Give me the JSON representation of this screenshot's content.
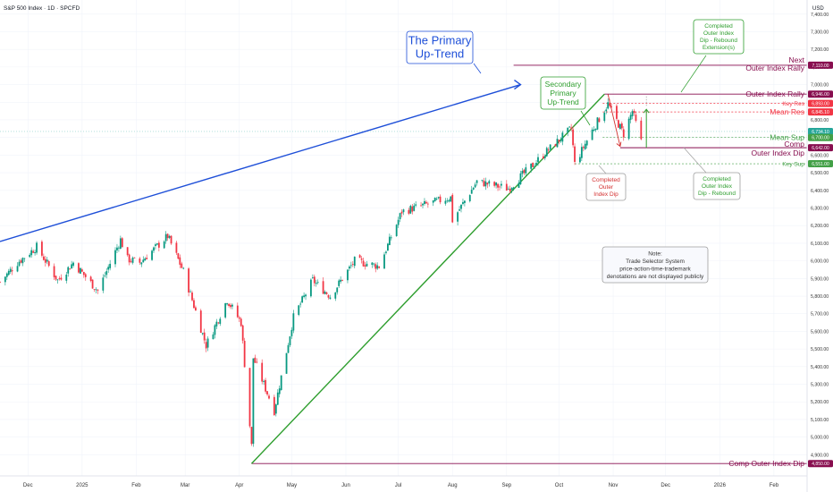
{
  "header": {
    "title": "S&P 500 Index · 1D · SPCFD",
    "currency": "USD"
  },
  "chart_data": {
    "type": "candlestick",
    "title": "S&P 500 Index · 1D · SPCFD",
    "y_axis_label": "USD",
    "ylim": [
      4780,
      7480
    ],
    "x_range": [
      "2024-11-15",
      "2026-02-20"
    ],
    "x_ticks": [
      {
        "label": "Dec",
        "date": "2024-12-01"
      },
      {
        "label": "2025",
        "date": "2025-01-01"
      },
      {
        "label": "Feb",
        "date": "2025-02-01"
      },
      {
        "label": "Mar",
        "date": "2025-03-01"
      },
      {
        "label": "Apr",
        "date": "2025-04-01"
      },
      {
        "label": "May",
        "date": "2025-05-01"
      },
      {
        "label": "Jun",
        "date": "2025-06-01"
      },
      {
        "label": "Jul",
        "date": "2025-07-01"
      },
      {
        "label": "Aug",
        "date": "2025-08-01"
      },
      {
        "label": "Sep",
        "date": "2025-09-01"
      },
      {
        "label": "Oct",
        "date": "2025-10-01"
      },
      {
        "label": "Nov",
        "date": "2025-11-01"
      },
      {
        "label": "Dec",
        "date": "2025-12-01"
      },
      {
        "label": "2026",
        "date": "2026-01-01"
      },
      {
        "label": "Feb",
        "date": "2026-02-01"
      }
    ],
    "y_ticks": [
      "4,900.00",
      "5,000.00",
      "5,100.00",
      "5,200.00",
      "5,300.00",
      "5,400.00",
      "5,500.00",
      "5,600.00",
      "5,700.00",
      "5,800.00",
      "5,900.00",
      "6,000.00",
      "6,100.00",
      "6,200.00",
      "6,300.00",
      "6,400.00",
      "6,500.00",
      "6,600.00",
      "6,700.00",
      "6,800.00",
      "6,900.00",
      "7,000.00",
      "7,100.00",
      "7,200.00",
      "7,300.00",
      "7,400.00"
    ],
    "price_anchors": [
      {
        "date": "2024-11-15",
        "price": 5880
      },
      {
        "date": "2024-11-25",
        "price": 5990
      },
      {
        "date": "2024-12-06",
        "price": 6080
      },
      {
        "date": "2024-12-18",
        "price": 5890
      },
      {
        "date": "2024-12-27",
        "price": 5990
      },
      {
        "date": "2025-01-10",
        "price": 5830
      },
      {
        "date": "2025-01-23",
        "price": 6120
      },
      {
        "date": "2025-01-27",
        "price": 6010
      },
      {
        "date": "2025-02-03",
        "price": 5990
      },
      {
        "date": "2025-02-19",
        "price": 6140
      },
      {
        "date": "2025-02-28",
        "price": 5940
      },
      {
        "date": "2025-03-13",
        "price": 5520
      },
      {
        "date": "2025-03-25",
        "price": 5780
      },
      {
        "date": "2025-04-02",
        "price": 5650
      },
      {
        "date": "2025-04-08",
        "price": 4950
      },
      {
        "date": "2025-04-09",
        "price": 5450
      },
      {
        "date": "2025-04-21",
        "price": 5150
      },
      {
        "date": "2025-05-02",
        "price": 5680
      },
      {
        "date": "2025-05-13",
        "price": 5890
      },
      {
        "date": "2025-05-23",
        "price": 5800
      },
      {
        "date": "2025-06-06",
        "price": 6000
      },
      {
        "date": "2025-06-20",
        "price": 5970
      },
      {
        "date": "2025-07-03",
        "price": 6280
      },
      {
        "date": "2025-07-31",
        "price": 6360
      },
      {
        "date": "2025-08-01",
        "price": 6230
      },
      {
        "date": "2025-08-15",
        "price": 6450
      },
      {
        "date": "2025-09-02",
        "price": 6410
      },
      {
        "date": "2025-09-26",
        "price": 6640
      },
      {
        "date": "2025-10-08",
        "price": 6750
      },
      {
        "date": "2025-10-10",
        "price": 6550
      },
      {
        "date": "2025-10-20",
        "price": 6740
      },
      {
        "date": "2025-10-29",
        "price": 6890
      },
      {
        "date": "2025-11-07",
        "price": 6720
      },
      {
        "date": "2025-11-12",
        "price": 6850
      },
      {
        "date": "2025-11-18",
        "price": 6640
      }
    ],
    "current_price": "6,734.10",
    "price_levels": [
      {
        "name": "Next Outer Index Rally",
        "label_line1": "Next",
        "label_line2": "Outer Index Rally",
        "value": 7110,
        "tag": "7,110.00",
        "color": "#880e4f"
      },
      {
        "name": "Outer Index Rally",
        "label": "Outer Index Rally",
        "value": 6946,
        "tag": "6,946.00",
        "color": "#880e4f"
      },
      {
        "name": "Key Res",
        "label": "Key Res",
        "value": 6893,
        "tag": "6,893.00",
        "color": "#f23645"
      },
      {
        "name": "Mean Res",
        "label": "Mean Res",
        "value": 6845.1,
        "tag": "6,845.10",
        "color": "#f23645"
      },
      {
        "name": "Mean Sup",
        "label": "Mean Sup",
        "value": 6700,
        "tag": "6,700.00",
        "color": "#43a047"
      },
      {
        "name": "Comp",
        "label": "Comp",
        "value": 6642,
        "tag": "6,642.00",
        "color": "#880e4f"
      },
      {
        "name": "Outer Index Dip",
        "label": "Outer Index Dip",
        "value": 6642,
        "color": "#880e4f"
      },
      {
        "name": "Key Sup",
        "label": "Key Sup",
        "value": 6551,
        "tag": "6,551.00",
        "color": "#43a047"
      },
      {
        "name": "Comp Outer Index Dip",
        "label": "Comp Outer Index Dip",
        "value": 4850,
        "tag": "4,850.00",
        "color": "#880e4f"
      }
    ],
    "trendlines": [
      {
        "name": "primary-uptrend",
        "color": "#1e4fd8",
        "from": {
          "date": "2024-11-15",
          "price": 6110
        },
        "to": {
          "date": "2025-09-09",
          "price": 7000
        }
      },
      {
        "name": "secondary-uptrend",
        "color": "#2e9e2e",
        "from": {
          "date": "2025-04-08",
          "price": 4850
        },
        "to": {
          "date": "2025-10-27",
          "price": 6946
        }
      }
    ],
    "annotations": {
      "primary_trend": "The Primary Up-Trend",
      "primary_trend_lines": [
        "The Primary",
        "Up-Trend"
      ],
      "secondary_trend_lines": [
        "Secondary",
        "Primary",
        "Up-Trend"
      ],
      "completed_dip_lines": [
        "Completed",
        "Outer",
        "Index Dip"
      ],
      "completed_rebound_lines": [
        "Completed",
        "Outer Index",
        "Dip - Rebound"
      ],
      "completed_extension_lines": [
        "Completed",
        "Outer Index",
        "Dip - Rebound",
        "Extension(s)"
      ],
      "note_lines": [
        "Note:",
        "Trade Selector System",
        "price-action-time-trademark",
        "denotations are not displayed publicly"
      ]
    },
    "colors": {
      "up": "#089981",
      "down": "#f23645",
      "grid": "#f0f3fa",
      "axis_text": "#333333"
    }
  }
}
